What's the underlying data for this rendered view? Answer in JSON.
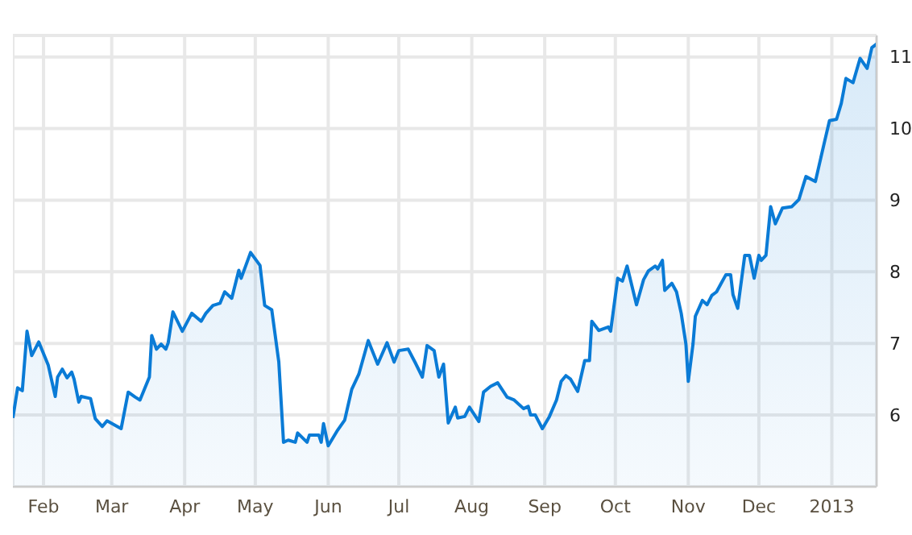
{
  "chart_data": {
    "type": "area",
    "color": "#0a7bd6",
    "x": [
      "2012-01-19",
      "2012-01-21",
      "2012-01-23",
      "2012-01-25",
      "2012-01-27",
      "2012-01-30",
      "2012-02-03",
      "2012-02-06",
      "2012-02-07",
      "2012-02-09",
      "2012-02-11",
      "2012-02-13",
      "2012-02-14",
      "2012-02-16",
      "2012-02-17",
      "2012-02-21",
      "2012-02-23",
      "2012-02-26",
      "2012-02-28",
      "2012-03-05",
      "2012-03-08",
      "2012-03-11",
      "2012-03-13",
      "2012-03-17",
      "2012-03-18",
      "2012-03-20",
      "2012-03-22",
      "2012-03-24",
      "2012-03-25",
      "2012-03-27",
      "2012-03-31",
      "2012-04-04",
      "2012-04-08",
      "2012-04-10",
      "2012-04-13",
      "2012-04-16",
      "2012-04-18",
      "2012-04-21",
      "2012-04-24",
      "2012-04-25",
      "2012-04-29",
      "2012-05-03",
      "2012-05-05",
      "2012-05-08",
      "2012-05-11",
      "2012-05-13",
      "2012-05-15",
      "2012-05-18",
      "2012-05-19",
      "2012-05-23",
      "2012-05-24",
      "2012-05-28",
      "2012-05-29",
      "2012-05-30",
      "2012-06-01",
      "2012-06-05",
      "2012-06-08",
      "2012-06-11",
      "2012-06-14",
      "2012-06-18",
      "2012-06-22",
      "2012-06-26",
      "2012-06-29",
      "2012-07-01",
      "2012-07-05",
      "2012-07-08",
      "2012-07-11",
      "2012-07-13",
      "2012-07-16",
      "2012-07-18",
      "2012-07-20",
      "2012-07-22",
      "2012-07-25",
      "2012-07-26",
      "2012-07-29",
      "2012-07-31",
      "2012-08-04",
      "2012-08-06",
      "2012-08-09",
      "2012-08-12",
      "2012-08-16",
      "2012-08-19",
      "2012-08-23",
      "2012-08-25",
      "2012-08-26",
      "2012-08-28",
      "2012-08-31",
      "2012-09-03",
      "2012-09-06",
      "2012-09-08",
      "2012-09-10",
      "2012-09-12",
      "2012-09-15",
      "2012-09-18",
      "2012-09-20",
      "2012-09-21",
      "2012-09-24",
      "2012-09-28",
      "2012-09-29",
      "2012-10-02",
      "2012-10-04",
      "2012-10-06",
      "2012-10-10",
      "2012-10-13",
      "2012-10-15",
      "2012-10-18",
      "2012-10-19",
      "2012-10-21",
      "2012-10-22",
      "2012-10-25",
      "2012-10-27",
      "2012-10-29",
      "2012-10-31",
      "2012-11-01",
      "2012-11-03",
      "2012-11-04",
      "2012-11-07",
      "2012-11-09",
      "2012-11-11",
      "2012-11-13",
      "2012-11-15",
      "2012-11-17",
      "2012-11-19",
      "2012-11-20",
      "2012-11-22",
      "2012-11-25",
      "2012-11-27",
      "2012-11-29",
      "2012-12-01",
      "2012-12-02",
      "2012-12-04",
      "2012-12-06",
      "2012-12-08",
      "2012-12-11",
      "2012-12-15",
      "2012-12-18",
      "2012-12-21",
      "2012-12-25",
      "2012-12-29",
      "2012-12-31",
      "2013-01-03",
      "2013-01-05",
      "2013-01-07",
      "2013-01-10",
      "2013-01-13",
      "2013-01-16",
      "2013-01-18",
      "2013-01-20"
    ],
    "values": [
      5.96,
      6.38,
      6.34,
      7.17,
      6.83,
      7.02,
      6.7,
      6.26,
      6.53,
      6.64,
      6.52,
      6.6,
      6.5,
      6.18,
      6.26,
      6.23,
      5.95,
      5.84,
      5.92,
      5.81,
      6.32,
      6.25,
      6.21,
      6.53,
      7.11,
      6.92,
      6.99,
      6.92,
      7.01,
      7.44,
      7.17,
      7.42,
      7.31,
      7.42,
      7.53,
      7.56,
      7.72,
      7.63,
      8.02,
      7.91,
      8.27,
      8.09,
      7.53,
      7.47,
      6.74,
      5.62,
      5.65,
      5.62,
      5.75,
      5.62,
      5.72,
      5.72,
      5.62,
      5.88,
      5.57,
      5.79,
      5.93,
      6.36,
      6.57,
      7.04,
      6.71,
      7.01,
      6.74,
      6.9,
      6.92,
      6.73,
      6.53,
      6.97,
      6.9,
      6.53,
      6.71,
      5.89,
      6.11,
      5.96,
      5.98,
      6.11,
      5.91,
      6.32,
      6.4,
      6.45,
      6.25,
      6.21,
      6.09,
      6.12,
      6.0,
      6.0,
      5.81,
      5.98,
      6.21,
      6.47,
      6.55,
      6.5,
      6.33,
      6.76,
      6.76,
      7.31,
      7.18,
      7.23,
      7.17,
      7.91,
      7.87,
      8.08,
      7.54,
      7.89,
      8.01,
      8.08,
      8.04,
      8.16,
      7.74,
      7.84,
      7.72,
      7.42,
      6.99,
      6.47,
      6.99,
      7.38,
      7.6,
      7.54,
      7.67,
      7.72,
      7.84,
      7.96,
      7.96,
      7.68,
      7.49,
      8.23,
      8.23,
      7.91,
      8.23,
      8.16,
      8.23,
      8.91,
      8.67,
      8.89,
      8.91,
      9.01,
      9.33,
      9.26,
      9.83,
      10.11,
      10.13,
      10.35,
      10.7,
      10.64,
      10.98,
      10.84,
      11.13,
      11.18
    ],
    "xlim": [
      "2012-01-19",
      "2013-01-20"
    ],
    "xticks": [
      {
        "value": "2012-02-01",
        "label": "Feb"
      },
      {
        "value": "2012-03-01",
        "label": "Mar"
      },
      {
        "value": "2012-04-01",
        "label": "Apr"
      },
      {
        "value": "2012-05-01",
        "label": "May"
      },
      {
        "value": "2012-06-01",
        "label": "Jun"
      },
      {
        "value": "2012-07-01",
        "label": "Jul"
      },
      {
        "value": "2012-08-01",
        "label": "Aug"
      },
      {
        "value": "2012-09-01",
        "label": "Sep"
      },
      {
        "value": "2012-10-01",
        "label": "Oct"
      },
      {
        "value": "2012-11-01",
        "label": "Nov"
      },
      {
        "value": "2012-12-01",
        "label": "Dec"
      },
      {
        "value": "2013-01-01",
        "label": "2013"
      }
    ],
    "ylim": [
      5,
      11.3
    ],
    "yticks": [
      6,
      7,
      8,
      9,
      10,
      11
    ],
    "grid": true,
    "marker": "none"
  }
}
